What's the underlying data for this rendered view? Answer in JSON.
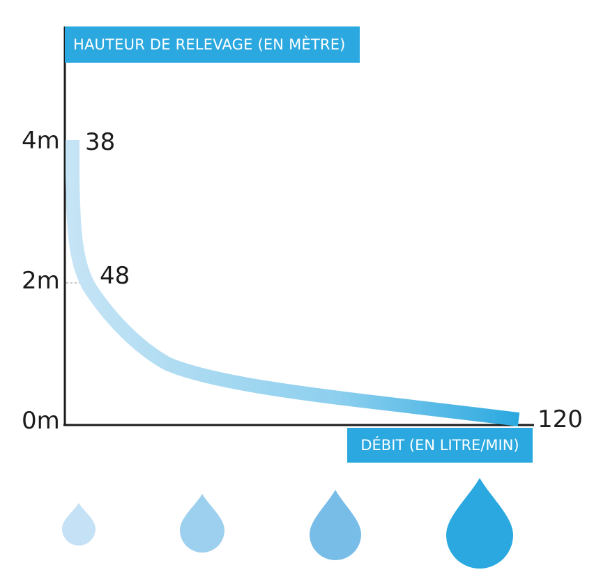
{
  "chart_data": {
    "type": "line",
    "ylabel": "HAUTEUR DE RELEVAGE (EN MÈTRE)",
    "xlabel": "DÉBIT (EN LITRE/MIN)",
    "y_ticks": [
      "0m",
      "2m",
      "4m"
    ],
    "ylim": [
      0,
      4
    ],
    "series": [
      {
        "points": [
          {
            "x": 38,
            "y": 4,
            "label": "38"
          },
          {
            "x": 48,
            "y": 2,
            "label": "48"
          },
          {
            "x": 120,
            "y": 0,
            "label": "120"
          }
        ]
      }
    ],
    "colors": {
      "curve_start": "#c5e4f5",
      "curve_end": "#2aa8df",
      "tag": "#2aa8df",
      "axis": "#1b1b1b"
    }
  },
  "drops": [
    {
      "name": "small-drop",
      "color": "#c5e1f5"
    },
    {
      "name": "medium-drop",
      "color": "#9dd0ef"
    },
    {
      "name": "large-drop",
      "color": "#78bde8"
    },
    {
      "name": "xlarge-drop",
      "color": "#2aa8df"
    }
  ]
}
